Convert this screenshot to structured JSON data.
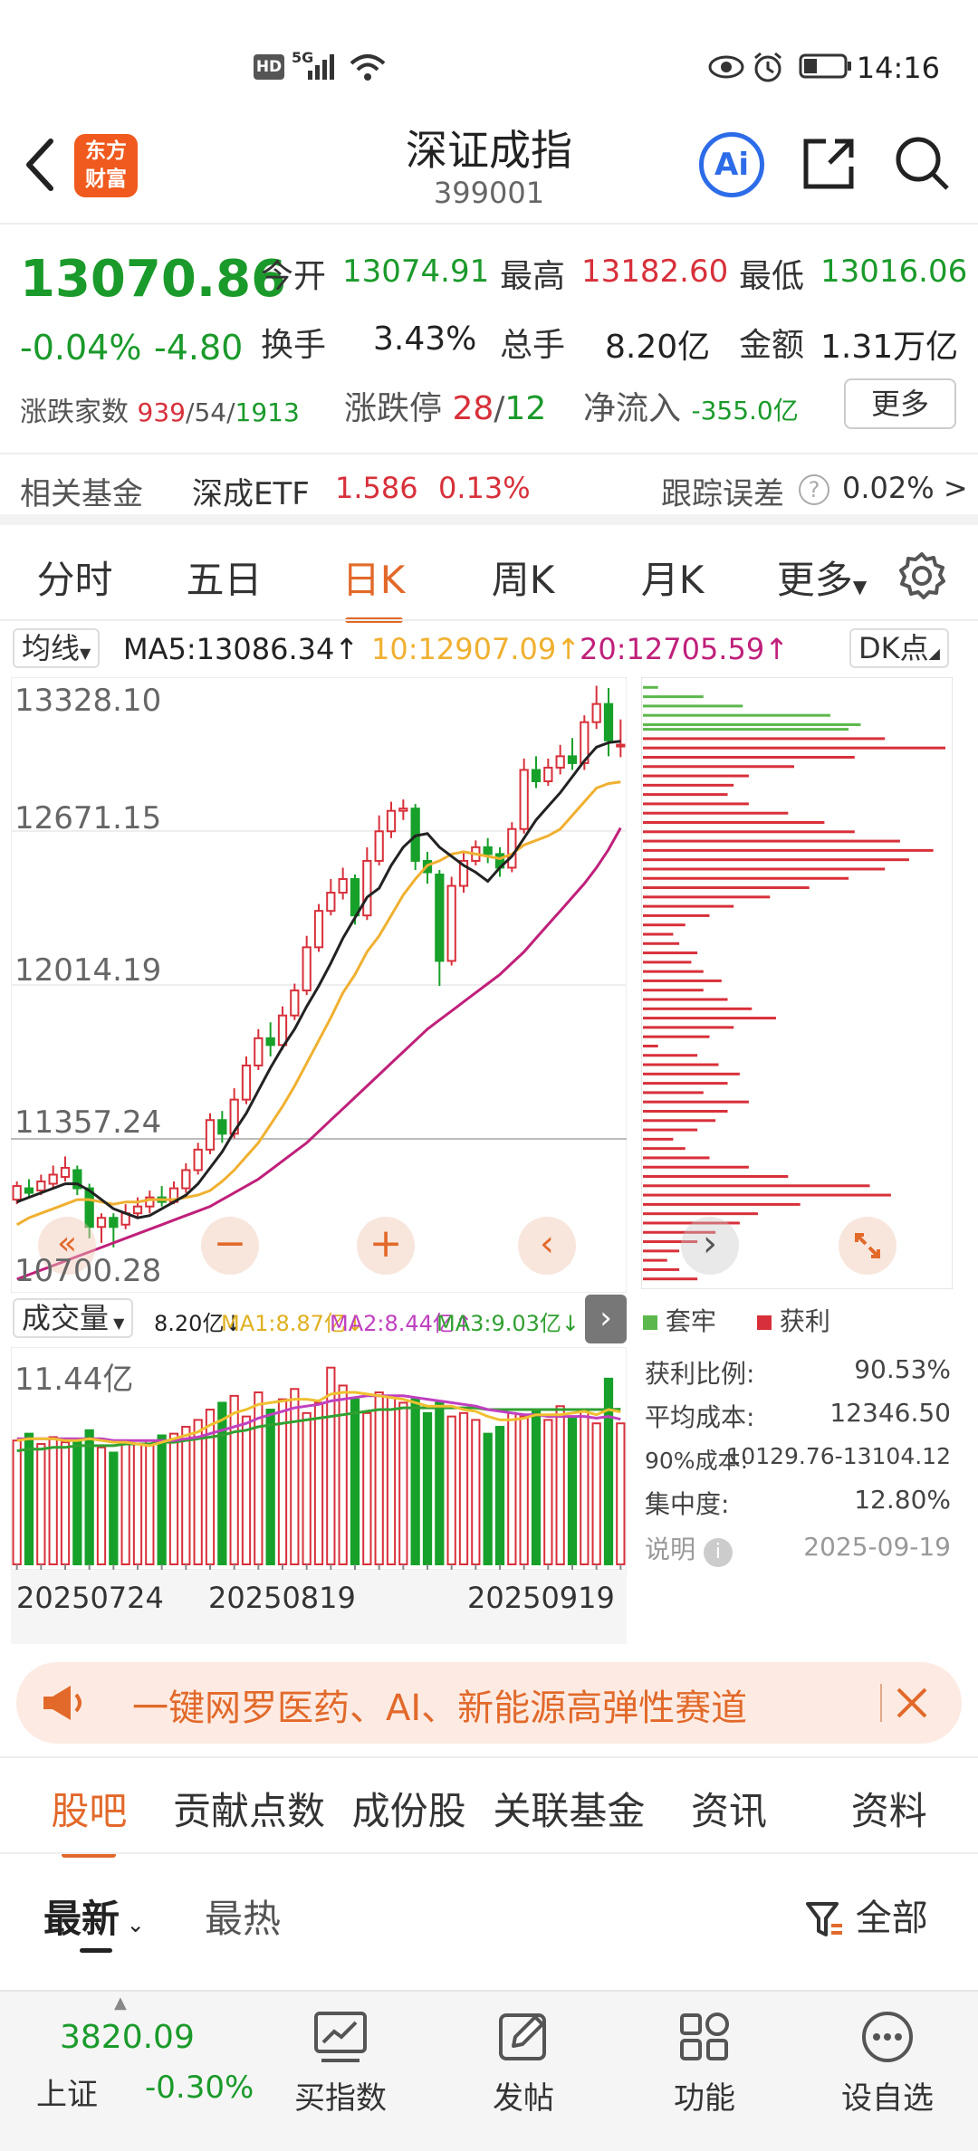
{
  "status": {
    "time": "14:16",
    "net": "5G",
    "hd": "HD"
  },
  "header": {
    "title": "深证成指",
    "code": "399001",
    "logo_text": [
      "东方",
      "财富"
    ],
    "ai_label": "Ai"
  },
  "quote": {
    "price": "13070.86",
    "pct": "-0.04%",
    "chg": "-4.80",
    "open_label": "今开",
    "open": "13074.91",
    "high_label": "最高",
    "high": "13182.60",
    "low_label": "最低",
    "low": "13016.06",
    "turnover_label": "换手",
    "turnover": "3.43%",
    "vol_label": "总手",
    "vol": "8.20亿",
    "amount_label": "金额",
    "amount": "1.31万亿",
    "adv_label": "涨跌家数",
    "adv_up": "939",
    "adv_flat": "54",
    "adv_down": "1913",
    "slash": "/",
    "limit_label": "涨跌停",
    "limit_up": "28",
    "limit_down": "12",
    "inflow_label": "净流入",
    "inflow": "-355.0亿",
    "more": "更多"
  },
  "fund": {
    "label": "相关基金",
    "name": "深成ETF",
    "price": "1.586",
    "pct": "0.13%",
    "track_label": "跟踪误差",
    "track": "0.02% >"
  },
  "period_tabs": [
    "分时",
    "五日",
    "日K",
    "周K",
    "月K",
    "更多"
  ],
  "chart": {
    "ma_select": "均线",
    "ma5": "MA5:13086.34",
    "ma10": "10:12907.09",
    "ma20": "20:12705.59",
    "dk": "DK点",
    "arrow": "↑",
    "ylabels": [
      "13328.10",
      "12671.15",
      "12014.19",
      "11357.24",
      "10700.28"
    ],
    "vol_select": "成交量",
    "vol_val": "8.20亿↓",
    "vol_ma1": "MA1:8.87亿↓",
    "vol_ma2": "MA2:8.44亿↑",
    "vol_ma3": "MA3:9.03亿↓",
    "vol_max": "11.44亿",
    "dates": [
      "20250724",
      "20250819",
      "20250919"
    ],
    "legend_trap": "套牢",
    "legend_profit": "获利",
    "colors": {
      "up": "#d8303a",
      "down": "#17a12a",
      "ma5": "#222222",
      "ma10": "#f0b030",
      "ma20": "#c0207a",
      "vma1": "#f0c030",
      "vma2": "#c040c0",
      "vma3": "#30a030"
    }
  },
  "chip_stats": {
    "profit_label": "获利比例:",
    "profit": "90.53%",
    "avg_label": "平均成本:",
    "avg": "12346.50",
    "c90_label": "90%成本:",
    "c90": "10129.76-13104.12",
    "conc_label": "集中度:",
    "conc": "12.80%",
    "note": "说明",
    "date": "2025-09-19"
  },
  "banner": {
    "text": "一键网罗医药、AI、新能源高弹性赛道"
  },
  "section_tabs": [
    "股吧",
    "贡献点数",
    "成份股",
    "关联基金",
    "资讯",
    "资料"
  ],
  "filter": {
    "latest": "最新",
    "hot": "最热",
    "all": "全部"
  },
  "navbar": {
    "index_value": "3820.09",
    "index_name": "上证",
    "index_pct": "-0.30%",
    "items": [
      "买指数",
      "发帖",
      "功能",
      "设自选"
    ]
  },
  "chart_data": {
    "type": "candlestick",
    "ylim": [
      10700.28,
      13328.1
    ],
    "candles": [
      [
        11070,
        11130,
        11150,
        11050
      ],
      [
        11120,
        11100,
        11160,
        11080
      ],
      [
        11110,
        11150,
        11180,
        11090
      ],
      [
        11140,
        11180,
        11220,
        11120
      ],
      [
        11170,
        11210,
        11260,
        11150
      ],
      [
        11200,
        11120,
        11220,
        11090
      ],
      [
        11120,
        10950,
        11140,
        10900
      ],
      [
        10950,
        10990,
        11010,
        10880
      ],
      [
        10990,
        10950,
        11010,
        10860
      ],
      [
        10960,
        11010,
        11050,
        10940
      ],
      [
        11010,
        11040,
        11080,
        10990
      ],
      [
        11040,
        11080,
        11110,
        11010
      ],
      [
        11080,
        11060,
        11130,
        11040
      ],
      [
        11060,
        11120,
        11150,
        11050
      ],
      [
        11120,
        11200,
        11230,
        11100
      ],
      [
        11200,
        11290,
        11320,
        11180
      ],
      [
        11290,
        11420,
        11450,
        11270
      ],
      [
        11420,
        11360,
        11460,
        11320
      ],
      [
        11360,
        11510,
        11560,
        11340
      ],
      [
        11510,
        11660,
        11700,
        11490
      ],
      [
        11660,
        11780,
        11820,
        11640
      ],
      [
        11780,
        11750,
        11850,
        11700
      ],
      [
        11750,
        11880,
        11920,
        11730
      ],
      [
        11880,
        11990,
        12020,
        11860
      ],
      [
        11990,
        12180,
        12230,
        11970
      ],
      [
        12180,
        12340,
        12370,
        12160
      ],
      [
        12340,
        12420,
        12480,
        12320
      ],
      [
        12420,
        12480,
        12530,
        12390
      ],
      [
        12480,
        12320,
        12500,
        12280
      ],
      [
        12320,
        12560,
        12620,
        12300
      ],
      [
        12560,
        12690,
        12760,
        12540
      ],
      [
        12690,
        12780,
        12820,
        12660
      ],
      [
        12780,
        12790,
        12830,
        12740
      ],
      [
        12790,
        12560,
        12810,
        12520
      ],
      [
        12560,
        12510,
        12600,
        12460
      ],
      [
        12500,
        12120,
        12520,
        12010
      ],
      [
        12120,
        12450,
        12490,
        12100
      ],
      [
        12450,
        12560,
        12600,
        12420
      ],
      [
        12560,
        12620,
        12650,
        12540
      ],
      [
        12620,
        12590,
        12660,
        12550
      ],
      [
        12590,
        12530,
        12620,
        12490
      ],
      [
        12530,
        12700,
        12730,
        12510
      ],
      [
        12700,
        12960,
        13010,
        12680
      ],
      [
        12960,
        12910,
        13020,
        12880
      ],
      [
        12910,
        12970,
        13010,
        12890
      ],
      [
        12970,
        13020,
        13070,
        12940
      ],
      [
        13020,
        12990,
        13100,
        12960
      ],
      [
        12990,
        13170,
        13200,
        12960
      ],
      [
        13170,
        13250,
        13330,
        13140
      ],
      [
        13250,
        13090,
        13320,
        13020
      ],
      [
        13070,
        13071,
        13182,
        13016
      ]
    ],
    "ma5": [
      11060,
      11080,
      11100,
      11120,
      11140,
      11140,
      11110,
      11070,
      11030,
      11010,
      10990,
      11000,
      11030,
      11060,
      11090,
      11140,
      11210,
      11280,
      11370,
      11450,
      11550,
      11650,
      11740,
      11820,
      11920,
      12010,
      12110,
      12220,
      12310,
      12400,
      12440,
      12540,
      12620,
      12670,
      12680,
      12620,
      12580,
      12540,
      12510,
      12470,
      12530,
      12580,
      12660,
      12740,
      12800,
      12860,
      12930,
      13000,
      13060,
      13080,
      13086
    ],
    "ma10": [
      10960,
      10990,
      11010,
      11030,
      11050,
      11070,
      11070,
      11060,
      11050,
      11060,
      11060,
      11070,
      11070,
      11070,
      11080,
      11090,
      11110,
      11150,
      11200,
      11260,
      11320,
      11400,
      11480,
      11570,
      11670,
      11770,
      11870,
      11980,
      12060,
      12160,
      12230,
      12320,
      12410,
      12480,
      12540,
      12560,
      12590,
      12600,
      12590,
      12580,
      12570,
      12590,
      12630,
      12650,
      12670,
      12700,
      12760,
      12820,
      12880,
      12900,
      12907
    ],
    "ma20": [
      10720,
      10740,
      10760,
      10780,
      10800,
      10820,
      10840,
      10860,
      10880,
      10900,
      10920,
      10940,
      10960,
      10980,
      11000,
      11020,
      11040,
      11070,
      11100,
      11130,
      11160,
      11200,
      11240,
      11280,
      11320,
      11370,
      11420,
      11470,
      11520,
      11570,
      11620,
      11670,
      11720,
      11770,
      11820,
      11860,
      11900,
      11940,
      11980,
      12020,
      12060,
      12110,
      12160,
      12220,
      12280,
      12340,
      12400,
      12460,
      12530,
      12610,
      12705
    ],
    "volume_max": 11.44,
    "volume": [
      7.2,
      7.6,
      7.0,
      7.4,
      7.1,
      7.3,
      7.8,
      6.8,
      6.5,
      7.2,
      7.0,
      7.2,
      7.5,
      7.6,
      8.0,
      8.4,
      9.0,
      9.4,
      9.8,
      8.6,
      10.0,
      9.0,
      9.6,
      10.2,
      8.8,
      9.4,
      11.44,
      10.4,
      9.6,
      8.8,
      10.0,
      9.8,
      9.4,
      9.6,
      8.8,
      9.4,
      8.6,
      8.8,
      8.4,
      7.6,
      8.0,
      8.8,
      8.6,
      9.0,
      8.4,
      9.2,
      8.6,
      9.0,
      8.2,
      10.8,
      8.2
    ],
    "vol_ma1": [
      7.2,
      7.3,
      7.3,
      7.3,
      7.2,
      7.2,
      7.3,
      7.2,
      7.1,
      7.1,
      7.0,
      6.9,
      7.1,
      7.3,
      7.5,
      7.7,
      8.1,
      8.4,
      8.8,
      9.0,
      9.3,
      9.4,
      9.5,
      9.6,
      9.6,
      9.5,
      9.9,
      10.0,
      10.0,
      9.9,
      9.8,
      9.7,
      9.6,
      9.4,
      9.2,
      9.2,
      9.2,
      9.0,
      8.9,
      8.6,
      8.4,
      8.4,
      8.5,
      8.7,
      8.7,
      8.7,
      8.8,
      8.9,
      8.7,
      9.0,
      8.87
    ],
    "vol_ma2": [
      7.3,
      7.3,
      7.3,
      7.3,
      7.3,
      7.3,
      7.3,
      7.3,
      7.2,
      7.2,
      7.2,
      7.2,
      7.2,
      7.2,
      7.3,
      7.4,
      7.6,
      7.8,
      8.0,
      8.2,
      8.5,
      8.7,
      8.9,
      9.1,
      9.2,
      9.3,
      9.5,
      9.6,
      9.7,
      9.8,
      9.8,
      9.8,
      9.8,
      9.7,
      9.6,
      9.5,
      9.4,
      9.3,
      9.2,
      9.0,
      8.9,
      8.8,
      8.7,
      8.7,
      8.6,
      8.6,
      8.6,
      8.6,
      8.5,
      8.6,
      8.44
    ],
    "vol_ma3": [
      6.6,
      6.7,
      6.7,
      6.8,
      6.8,
      6.9,
      6.9,
      6.9,
      6.9,
      7.0,
      7.0,
      7.0,
      7.1,
      7.1,
      7.2,
      7.3,
      7.4,
      7.5,
      7.7,
      7.8,
      8.0,
      8.1,
      8.2,
      8.3,
      8.4,
      8.5,
      8.6,
      8.7,
      8.8,
      8.9,
      9.0,
      9.0,
      9.1,
      9.1,
      9.1,
      9.1,
      9.1,
      9.1,
      9.1,
      9.0,
      9.0,
      9.0,
      9.0,
      9.0,
      9.0,
      9.0,
      9.0,
      9.0,
      9.0,
      9.0,
      9.03
    ],
    "chip_bars": [
      {
        "p": 13290,
        "w": 0.05,
        "t": "trap"
      },
      {
        "p": 13250,
        "w": 0.2,
        "t": "trap"
      },
      {
        "p": 13210,
        "w": 0.33,
        "t": "trap"
      },
      {
        "p": 13170,
        "w": 0.62,
        "t": "trap"
      },
      {
        "p": 13130,
        "w": 0.72,
        "t": "trap"
      },
      {
        "p": 13110,
        "w": 0.68,
        "t": "trap"
      },
      {
        "p": 13070,
        "w": 0.8,
        "t": "profit"
      },
      {
        "p": 13030,
        "w": 1.0,
        "t": "profit"
      },
      {
        "p": 12990,
        "w": 0.7,
        "t": "profit"
      },
      {
        "p": 12950,
        "w": 0.5,
        "t": "profit"
      },
      {
        "p": 12910,
        "w": 0.35,
        "t": "profit"
      },
      {
        "p": 12870,
        "w": 0.3,
        "t": "profit"
      },
      {
        "p": 12830,
        "w": 0.28,
        "t": "profit"
      },
      {
        "p": 12790,
        "w": 0.35,
        "t": "profit"
      },
      {
        "p": 12750,
        "w": 0.48,
        "t": "profit"
      },
      {
        "p": 12710,
        "w": 0.6,
        "t": "profit"
      },
      {
        "p": 12670,
        "w": 0.7,
        "t": "profit"
      },
      {
        "p": 12630,
        "w": 0.85,
        "t": "profit"
      },
      {
        "p": 12590,
        "w": 0.96,
        "t": "profit"
      },
      {
        "p": 12550,
        "w": 0.88,
        "t": "profit"
      },
      {
        "p": 12510,
        "w": 0.8,
        "t": "profit"
      },
      {
        "p": 12470,
        "w": 0.68,
        "t": "profit"
      },
      {
        "p": 12430,
        "w": 0.55,
        "t": "profit"
      },
      {
        "p": 12390,
        "w": 0.42,
        "t": "profit"
      },
      {
        "p": 12350,
        "w": 0.3,
        "t": "profit"
      },
      {
        "p": 12310,
        "w": 0.22,
        "t": "profit"
      },
      {
        "p": 12270,
        "w": 0.14,
        "t": "profit"
      },
      {
        "p": 12230,
        "w": 0.1,
        "t": "profit"
      },
      {
        "p": 12190,
        "w": 0.12,
        "t": "profit"
      },
      {
        "p": 12150,
        "w": 0.18,
        "t": "profit"
      },
      {
        "p": 12110,
        "w": 0.16,
        "t": "profit"
      },
      {
        "p": 12070,
        "w": 0.2,
        "t": "profit"
      },
      {
        "p": 12030,
        "w": 0.26,
        "t": "profit"
      },
      {
        "p": 11990,
        "w": 0.2,
        "t": "profit"
      },
      {
        "p": 11950,
        "w": 0.28,
        "t": "profit"
      },
      {
        "p": 11910,
        "w": 0.36,
        "t": "profit"
      },
      {
        "p": 11870,
        "w": 0.44,
        "t": "profit"
      },
      {
        "p": 11830,
        "w": 0.3,
        "t": "profit"
      },
      {
        "p": 11790,
        "w": 0.22,
        "t": "profit"
      },
      {
        "p": 11750,
        "w": 0.05,
        "t": "profit"
      },
      {
        "p": 11710,
        "w": 0.18,
        "t": "profit"
      },
      {
        "p": 11670,
        "w": 0.25,
        "t": "profit"
      },
      {
        "p": 11630,
        "w": 0.32,
        "t": "profit"
      },
      {
        "p": 11590,
        "w": 0.28,
        "t": "profit"
      },
      {
        "p": 11550,
        "w": 0.2,
        "t": "profit"
      },
      {
        "p": 11510,
        "w": 0.35,
        "t": "profit"
      },
      {
        "p": 11470,
        "w": 0.28,
        "t": "profit"
      },
      {
        "p": 11430,
        "w": 0.24,
        "t": "profit"
      },
      {
        "p": 11390,
        "w": 0.18,
        "t": "profit"
      },
      {
        "p": 11350,
        "w": 0.1,
        "t": "profit"
      },
      {
        "p": 11310,
        "w": 0.14,
        "t": "profit"
      },
      {
        "p": 11270,
        "w": 0.22,
        "t": "profit"
      },
      {
        "p": 11230,
        "w": 0.35,
        "t": "profit"
      },
      {
        "p": 11190,
        "w": 0.48,
        "t": "profit"
      },
      {
        "p": 11150,
        "w": 0.75,
        "t": "profit"
      },
      {
        "p": 11110,
        "w": 0.82,
        "t": "profit"
      },
      {
        "p": 11070,
        "w": 0.52,
        "t": "profit"
      },
      {
        "p": 11030,
        "w": 0.38,
        "t": "profit"
      },
      {
        "p": 10990,
        "w": 0.32,
        "t": "profit"
      },
      {
        "p": 10950,
        "w": 0.24,
        "t": "profit"
      },
      {
        "p": 10910,
        "w": 0.18,
        "t": "profit"
      },
      {
        "p": 10870,
        "w": 0.12,
        "t": "profit"
      },
      {
        "p": 10830,
        "w": 0.08,
        "t": "profit"
      },
      {
        "p": 10790,
        "w": 0.12,
        "t": "profit"
      },
      {
        "p": 10750,
        "w": 0.18,
        "t": "profit"
      }
    ]
  }
}
